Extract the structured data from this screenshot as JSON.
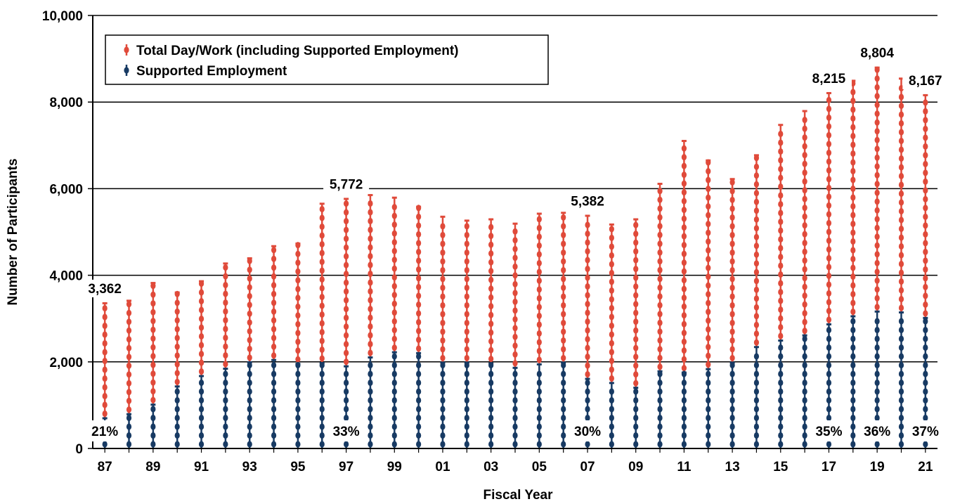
{
  "chart_data": {
    "type": "bar",
    "title": "",
    "xlabel": "Fiscal Year",
    "ylabel": "Number of Participants",
    "ylim": [
      0,
      10000
    ],
    "yticks": [
      0,
      2000,
      4000,
      6000,
      8000,
      10000
    ],
    "ytick_labels": [
      "0",
      "2,000",
      "4,000",
      "6,000",
      "8,000",
      "10,000"
    ],
    "grid": "horizontal",
    "legend_position": "top-left",
    "categories": [
      "87",
      "88",
      "89",
      "90",
      "91",
      "92",
      "93",
      "94",
      "95",
      "96",
      "97",
      "98",
      "99",
      "00",
      "01",
      "02",
      "03",
      "04",
      "05",
      "06",
      "07",
      "08",
      "09",
      "10",
      "11",
      "12",
      "13",
      "14",
      "15",
      "16",
      "17",
      "18",
      "19",
      "20",
      "21"
    ],
    "xtick_labels": [
      "87",
      "",
      "89",
      "",
      "91",
      "",
      "93",
      "",
      "95",
      "",
      "97",
      "",
      "99",
      "",
      "01",
      "",
      "03",
      "",
      "05",
      "",
      "07",
      "",
      "09",
      "",
      "11",
      "",
      "13",
      "",
      "15",
      "",
      "17",
      "",
      "19",
      "",
      "21"
    ],
    "series": [
      {
        "name": "Total Day/Work (including Supported Employment)",
        "color": "#e04a3a",
        "values": [
          3362,
          3420,
          3830,
          3610,
          3870,
          4280,
          4400,
          4680,
          4740,
          5660,
          5772,
          5860,
          5800,
          5590,
          5360,
          5270,
          5300,
          5200,
          5430,
          5450,
          5382,
          5180,
          5300,
          6120,
          7110,
          6660,
          6230,
          6780,
          7480,
          7800,
          8215,
          8500,
          8804,
          8550,
          8167
        ]
      },
      {
        "name": "Supported Employment",
        "color": "#173a63",
        "values": [
          706,
          800,
          1020,
          1440,
          1680,
          1850,
          2000,
          2050,
          1960,
          1980,
          1905,
          2110,
          2230,
          2210,
          1990,
          1990,
          1970,
          1870,
          1950,
          1990,
          1615,
          1520,
          1410,
          1790,
          1760,
          1840,
          1990,
          2350,
          2500,
          2620,
          2875,
          3060,
          3170,
          3150,
          3022
        ]
      }
    ],
    "annotations": [
      {
        "category": "87",
        "value_label": "3,362",
        "pct_label": "21%"
      },
      {
        "category": "97",
        "value_label": "5,772",
        "pct_label": "33%"
      },
      {
        "category": "07",
        "value_label": "5,382",
        "pct_label": "30%"
      },
      {
        "category": "17",
        "value_label": "8,215",
        "pct_label": "35%"
      },
      {
        "category": "19",
        "value_label": "8,804",
        "pct_label": "36%"
      },
      {
        "category": "21",
        "value_label": "8,167",
        "pct_label": "37%"
      }
    ]
  }
}
